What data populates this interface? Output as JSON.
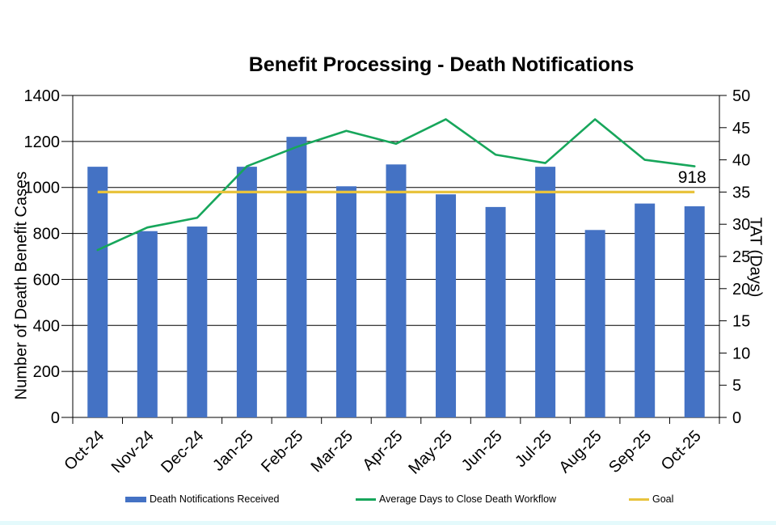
{
  "page": {
    "bottom_strip_color": "#e4fafc"
  },
  "chart_data": {
    "type": "bar",
    "subtype": "combo-bar-line-dual-axis",
    "title": "Benefit Processing - Death Notifications",
    "categories": [
      "Oct-24",
      "Nov-24",
      "Dec-24",
      "Jan-25",
      "Feb-25",
      "Mar-25",
      "Apr-25",
      "May-25",
      "Jun-25",
      "Jul-25",
      "Aug-25",
      "Sep-25",
      "Oct-25"
    ],
    "series": [
      {
        "name": "Death Notifications Received",
        "type": "bar",
        "axis": "left",
        "color": "#4472C4",
        "values": [
          1090,
          810,
          830,
          1090,
          1220,
          1005,
          1100,
          970,
          915,
          1090,
          815,
          930,
          918
        ]
      },
      {
        "name": "Average Days to Close Death Workflow",
        "type": "line",
        "axis": "right",
        "color": "#17A65B",
        "values": [
          26,
          29.5,
          31,
          39,
          42,
          44.5,
          42.5,
          46.3,
          40.8,
          39.5,
          46.3,
          40,
          39
        ]
      },
      {
        "name": "Goal",
        "type": "line",
        "axis": "right",
        "color": "#E8C33D",
        "value": 35
      }
    ],
    "data_labels": [
      {
        "series": 0,
        "category": "Oct-25",
        "text": "918"
      }
    ],
    "left_axis": {
      "title": "Number of Death Benefit Cases",
      "min": 0,
      "max": 1400,
      "step": 200,
      "ticks": [
        "0",
        "200",
        "400",
        "600",
        "800",
        "1000",
        "1200",
        "1400"
      ]
    },
    "right_axis": {
      "title": "TAT (Days)",
      "min": 0,
      "max": 50,
      "step": 5,
      "ticks": [
        "0",
        "5",
        "10",
        "15",
        "20",
        "25",
        "30",
        "35",
        "40",
        "45",
        "50"
      ]
    },
    "legend": {
      "position": "bottom",
      "entries": [
        "Death Notifications Received",
        "Average Days to Close Death Workflow",
        "Goal"
      ]
    },
    "grid": "horizontal-black",
    "xlabel": "",
    "ylabel": "Number of Death Benefit Cases",
    "y2label": "TAT (Days)"
  }
}
